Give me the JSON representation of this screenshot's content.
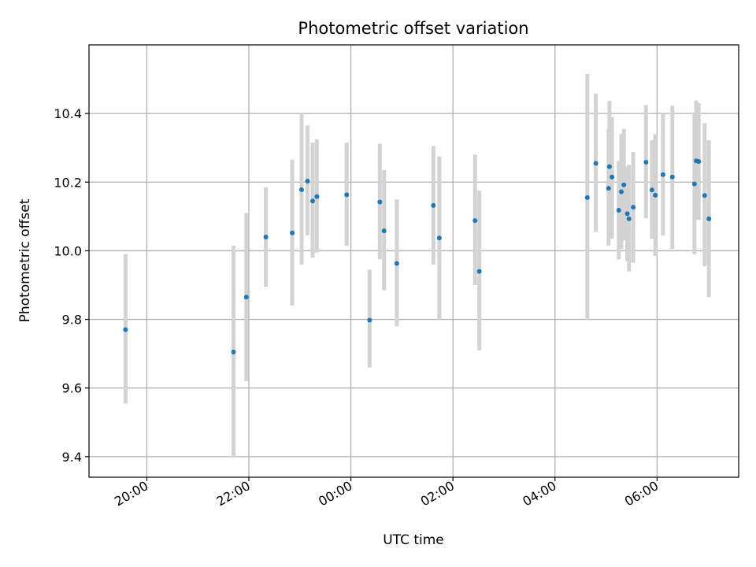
{
  "chart_data": {
    "type": "scatter",
    "title": "Photometric offset variation",
    "xlabel": "UTC time",
    "ylabel": "Photometric offset",
    "grid": true,
    "xlim": [
      "2023-01-01T18:52",
      "2023-01-02T07:36"
    ],
    "ylim": [
      9.34,
      10.6
    ],
    "x_ticks": [
      {
        "label": "20:00",
        "value": "2023-01-01T20:00"
      },
      {
        "label": "22:00",
        "value": "2023-01-01T22:00"
      },
      {
        "label": "00:00",
        "value": "2023-01-02T00:00"
      },
      {
        "label": "02:00",
        "value": "2023-01-02T02:00"
      },
      {
        "label": "04:00",
        "value": "2023-01-02T04:00"
      },
      {
        "label": "06:00",
        "value": "2023-01-02T06:00"
      }
    ],
    "y_ticks": [
      9.4,
      9.6,
      9.8,
      10.0,
      10.2,
      10.4
    ],
    "y_tick_labels": [
      "9.4",
      "9.6",
      "9.8",
      "10.0",
      "10.2",
      "10.4"
    ],
    "colors": {
      "marker": "#1f77b4",
      "error_bar": "#d3d3d3",
      "grid": "#b0b0b0"
    },
    "points": [
      {
        "t": "2023-01-01T19:35",
        "y": 9.77,
        "lo": 9.555,
        "hi": 9.99
      },
      {
        "t": "2023-01-01T21:42",
        "y": 9.705,
        "lo": 9.4,
        "hi": 10.015
      },
      {
        "t": "2023-01-01T21:57",
        "y": 9.865,
        "lo": 9.62,
        "hi": 10.11
      },
      {
        "t": "2023-01-01T22:20",
        "y": 10.04,
        "lo": 9.895,
        "hi": 10.185
      },
      {
        "t": "2023-01-01T22:51",
        "y": 10.052,
        "lo": 9.84,
        "hi": 10.265
      },
      {
        "t": "2023-01-01T23:02",
        "y": 10.178,
        "lo": 9.96,
        "hi": 10.4
      },
      {
        "t": "2023-01-01T23:09",
        "y": 10.203,
        "lo": 10.045,
        "hi": 10.365
      },
      {
        "t": "2023-01-01T23:15",
        "y": 10.145,
        "lo": 9.98,
        "hi": 10.315
      },
      {
        "t": "2023-01-01T23:20",
        "y": 10.158,
        "lo": 9.995,
        "hi": 10.325
      },
      {
        "t": "2023-01-01T23:55",
        "y": 10.163,
        "lo": 10.015,
        "hi": 10.315
      },
      {
        "t": "2023-01-02T00:22",
        "y": 9.798,
        "lo": 9.66,
        "hi": 9.945
      },
      {
        "t": "2023-01-02T00:34",
        "y": 10.142,
        "lo": 9.975,
        "hi": 10.312
      },
      {
        "t": "2023-01-02T00:39",
        "y": 10.058,
        "lo": 9.885,
        "hi": 10.235
      },
      {
        "t": "2023-01-02T00:54",
        "y": 9.963,
        "lo": 9.78,
        "hi": 10.15
      },
      {
        "t": "2023-01-02T01:37",
        "y": 10.132,
        "lo": 9.96,
        "hi": 10.305
      },
      {
        "t": "2023-01-02T01:44",
        "y": 10.037,
        "lo": 9.8,
        "hi": 10.275
      },
      {
        "t": "2023-01-02T02:26",
        "y": 10.088,
        "lo": 9.9,
        "hi": 10.28
      },
      {
        "t": "2023-01-02T02:31",
        "y": 9.94,
        "lo": 9.71,
        "hi": 10.175
      },
      {
        "t": "2023-01-02T04:38",
        "y": 10.155,
        "lo": 9.8,
        "hi": 10.515
      },
      {
        "t": "2023-01-02T04:48",
        "y": 10.255,
        "lo": 10.055,
        "hi": 10.458
      },
      {
        "t": "2023-01-02T05:03",
        "y": 10.182,
        "lo": 10.015,
        "hi": 10.355
      },
      {
        "t": "2023-01-02T05:04",
        "y": 10.245,
        "lo": 10.055,
        "hi": 10.437
      },
      {
        "t": "2023-01-02T05:07",
        "y": 10.215,
        "lo": 10.035,
        "hi": 10.39
      },
      {
        "t": "2023-01-02T05:15",
        "y": 10.118,
        "lo": 9.975,
        "hi": 10.262
      },
      {
        "t": "2023-01-02T05:18",
        "y": 10.172,
        "lo": 10.005,
        "hi": 10.34
      },
      {
        "t": "2023-01-02T05:21",
        "y": 10.192,
        "lo": 10.03,
        "hi": 10.355
      },
      {
        "t": "2023-01-02T05:25",
        "y": 10.108,
        "lo": 9.97,
        "hi": 10.245
      },
      {
        "t": "2023-01-02T05:27",
        "y": 10.093,
        "lo": 9.94,
        "hi": 10.25
      },
      {
        "t": "2023-01-02T05:32",
        "y": 10.127,
        "lo": 9.965,
        "hi": 10.288
      },
      {
        "t": "2023-01-02T05:47",
        "y": 10.258,
        "lo": 10.095,
        "hi": 10.425
      },
      {
        "t": "2023-01-02T05:54",
        "y": 10.177,
        "lo": 10.035,
        "hi": 10.322
      },
      {
        "t": "2023-01-02T05:58",
        "y": 10.162,
        "lo": 9.985,
        "hi": 10.34
      },
      {
        "t": "2023-01-02T06:07",
        "y": 10.222,
        "lo": 10.045,
        "hi": 10.4
      },
      {
        "t": "2023-01-02T06:18",
        "y": 10.215,
        "lo": 10.005,
        "hi": 10.423
      },
      {
        "t": "2023-01-02T06:44",
        "y": 10.195,
        "lo": 9.99,
        "hi": 10.4
      },
      {
        "t": "2023-01-02T06:46",
        "y": 10.262,
        "lo": 10.09,
        "hi": 10.438
      },
      {
        "t": "2023-01-02T06:49",
        "y": 10.26,
        "lo": 10.09,
        "hi": 10.43
      },
      {
        "t": "2023-01-02T06:56",
        "y": 10.161,
        "lo": 9.955,
        "hi": 10.372
      },
      {
        "t": "2023-01-02T07:01",
        "y": 10.093,
        "lo": 9.865,
        "hi": 10.322
      }
    ]
  }
}
